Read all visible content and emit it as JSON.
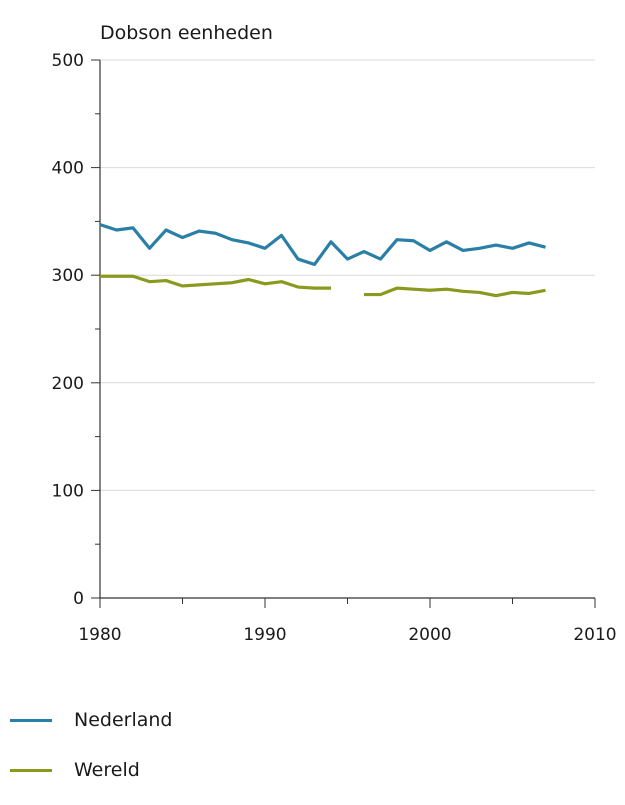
{
  "chart_data": {
    "type": "line",
    "title": "",
    "xlabel": "",
    "ylabel": "Dobson eenheden",
    "xlim": [
      1980,
      2010
    ],
    "ylim": [
      0,
      500
    ],
    "xticks": [
      1980,
      1990,
      2000,
      2010
    ],
    "yticks": [
      0,
      100,
      200,
      300,
      400,
      500
    ],
    "grid": true,
    "legend_position": "bottom-left",
    "series": [
      {
        "name": "Nederland",
        "color": "#2a7fa6",
        "x": [
          1980,
          1981,
          1982,
          1983,
          1984,
          1985,
          1986,
          1987,
          1988,
          1989,
          1990,
          1991,
          1992,
          1993,
          1994,
          1995,
          1996,
          1997,
          1998,
          1999,
          2000,
          2001,
          2002,
          2003,
          2004,
          2005,
          2006,
          2007
        ],
        "values": [
          347,
          342,
          344,
          325,
          342,
          335,
          341,
          339,
          333,
          330,
          325,
          337,
          315,
          310,
          331,
          315,
          322,
          315,
          333,
          332,
          323,
          331,
          323,
          325,
          328,
          325,
          330,
          326
        ]
      },
      {
        "name": "Wereld",
        "color": "#8a9a1e",
        "x": [
          1980,
          1981,
          1982,
          1983,
          1984,
          1985,
          1986,
          1987,
          1988,
          1989,
          1990,
          1991,
          1992,
          1993,
          1994,
          1995,
          1996,
          1997,
          1998,
          1999,
          2000,
          2001,
          2002,
          2003,
          2004,
          2005,
          2006,
          2007
        ],
        "values": [
          299,
          299,
          299,
          294,
          295,
          290,
          291,
          292,
          293,
          296,
          292,
          294,
          289,
          288,
          288,
          null,
          282,
          282,
          288,
          287,
          286,
          287,
          285,
          284,
          281,
          284,
          283,
          286
        ]
      }
    ]
  }
}
